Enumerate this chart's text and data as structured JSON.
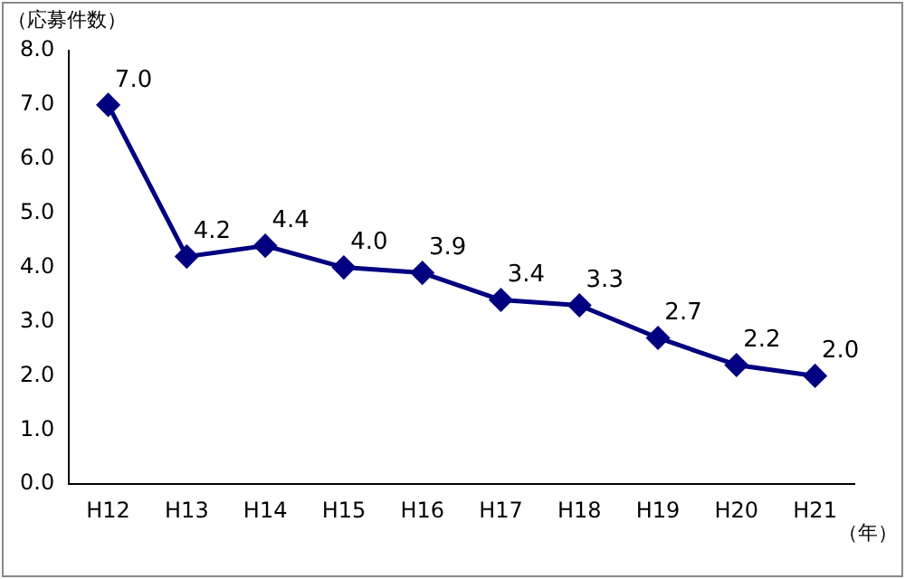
{
  "chart_data": {
    "type": "line",
    "ylabel": "（応募件数）",
    "xlabel": "（年）",
    "categories": [
      "H12",
      "H13",
      "H14",
      "H15",
      "H16",
      "H17",
      "H18",
      "H19",
      "H20",
      "H21"
    ],
    "series": [
      {
        "color": "#000080",
        "values": [
          7.0,
          4.2,
          4.4,
          4.0,
          3.9,
          3.4,
          3.3,
          2.7,
          2.2,
          2.0
        ],
        "value_labels": [
          "7.0",
          "4.2",
          "4.4",
          "4.0",
          "3.9",
          "3.4",
          "3.3",
          "2.7",
          "2.2",
          "2.0"
        ]
      }
    ],
    "ylim": [
      0,
      8
    ],
    "yticks": [
      {
        "value": 0,
        "label": "0.0"
      },
      {
        "value": 1,
        "label": "1.0"
      },
      {
        "value": 2,
        "label": "2.0"
      },
      {
        "value": 3,
        "label": "3.0"
      },
      {
        "value": 4,
        "label": "4.0"
      },
      {
        "value": 5,
        "label": "5.0"
      },
      {
        "value": 6,
        "label": "6.0"
      },
      {
        "value": 7,
        "label": "7.0"
      },
      {
        "value": 8,
        "label": "8.0"
      }
    ],
    "grid": false,
    "legend": false,
    "marker": "diamond",
    "line_style": "solid"
  }
}
